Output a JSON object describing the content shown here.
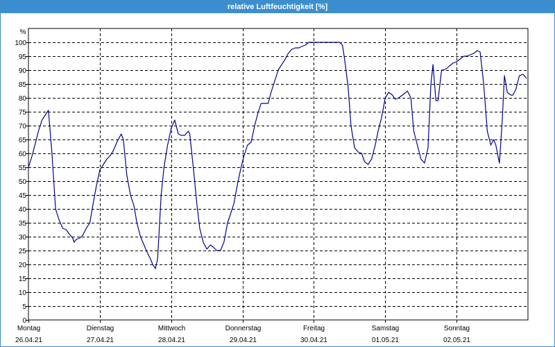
{
  "window": {
    "title": "relative Luftfeuchtigkeit [%]"
  },
  "chart_data": {
    "type": "line",
    "title": "relative Luftfeuchtigkeit [%]",
    "ylabel": "%",
    "ylim": [
      0,
      105
    ],
    "yticks": [
      0,
      5,
      10,
      15,
      20,
      25,
      30,
      35,
      40,
      45,
      50,
      55,
      60,
      65,
      70,
      75,
      80,
      85,
      90,
      95,
      100
    ],
    "xlim": [
      0,
      7
    ],
    "xticks": [
      {
        "x": 0,
        "day": "Montag",
        "date": "26.04.21"
      },
      {
        "x": 1,
        "day": "Dienstag",
        "date": "27.04.21"
      },
      {
        "x": 2,
        "day": "Mittwoch",
        "date": "28.04.21"
      },
      {
        "x": 3,
        "day": "Donnerstag",
        "date": "29.04.21"
      },
      {
        "x": 4,
        "day": "Freitag",
        "date": "30.04.21"
      },
      {
        "x": 5,
        "day": "Samstag",
        "date": "01.05.21"
      },
      {
        "x": 6,
        "day": "Sonntag",
        "date": "02.05.21"
      }
    ],
    "grid": true,
    "line_color": "#00008b",
    "series": [
      {
        "points": [
          [
            0.0,
            55
          ],
          [
            0.05,
            59
          ],
          [
            0.1,
            64
          ],
          [
            0.14,
            68
          ],
          [
            0.19,
            72
          ],
          [
            0.24,
            74
          ],
          [
            0.28,
            75.5
          ],
          [
            0.33,
            60
          ],
          [
            0.38,
            40
          ],
          [
            0.43,
            36
          ],
          [
            0.48,
            33
          ],
          [
            0.53,
            32.5
          ],
          [
            0.57,
            31
          ],
          [
            0.62,
            29.5
          ],
          [
            0.64,
            28
          ],
          [
            0.67,
            29
          ],
          [
            0.72,
            29.5
          ],
          [
            0.76,
            30.5
          ],
          [
            0.81,
            33
          ],
          [
            0.86,
            35
          ],
          [
            0.9,
            41
          ],
          [
            0.95,
            48
          ],
          [
            1.0,
            54
          ],
          [
            1.05,
            56
          ],
          [
            1.1,
            58
          ],
          [
            1.14,
            59
          ],
          [
            1.19,
            61
          ],
          [
            1.24,
            64
          ],
          [
            1.28,
            66
          ],
          [
            1.3,
            67
          ],
          [
            1.33,
            65
          ],
          [
            1.38,
            52
          ],
          [
            1.43,
            45
          ],
          [
            1.48,
            41
          ],
          [
            1.52,
            35
          ],
          [
            1.57,
            30
          ],
          [
            1.62,
            27
          ],
          [
            1.67,
            24
          ],
          [
            1.71,
            22
          ],
          [
            1.74,
            20
          ],
          [
            1.78,
            18.5
          ],
          [
            1.81,
            22
          ],
          [
            1.86,
            45
          ],
          [
            1.9,
            55
          ],
          [
            1.95,
            63
          ],
          [
            2.0,
            69
          ],
          [
            2.05,
            72
          ],
          [
            2.1,
            67
          ],
          [
            2.14,
            66.5
          ],
          [
            2.19,
            66.5
          ],
          [
            2.24,
            68
          ],
          [
            2.26,
            67
          ],
          [
            2.31,
            55
          ],
          [
            2.36,
            42
          ],
          [
            2.4,
            33
          ],
          [
            2.45,
            28
          ],
          [
            2.5,
            25.5
          ],
          [
            2.55,
            27
          ],
          [
            2.6,
            26
          ],
          [
            2.64,
            25
          ],
          [
            2.69,
            25
          ],
          [
            2.74,
            28
          ],
          [
            2.79,
            35
          ],
          [
            2.83,
            38
          ],
          [
            2.88,
            42
          ],
          [
            2.93,
            49
          ],
          [
            2.98,
            55
          ],
          [
            3.02,
            59
          ],
          [
            3.07,
            63
          ],
          [
            3.12,
            64
          ],
          [
            3.17,
            70
          ],
          [
            3.21,
            74
          ],
          [
            3.26,
            78
          ],
          [
            3.31,
            78
          ],
          [
            3.36,
            78
          ],
          [
            3.4,
            82
          ],
          [
            3.45,
            86
          ],
          [
            3.5,
            90
          ],
          [
            3.55,
            92
          ],
          [
            3.6,
            94
          ],
          [
            3.64,
            96
          ],
          [
            3.69,
            97.5
          ],
          [
            3.74,
            98
          ],
          [
            3.79,
            98
          ],
          [
            3.83,
            98.5
          ],
          [
            3.88,
            99
          ],
          [
            3.93,
            100
          ],
          [
            3.98,
            100
          ],
          [
            4.02,
            100
          ],
          [
            4.07,
            100
          ],
          [
            4.12,
            100
          ],
          [
            4.17,
            100
          ],
          [
            4.21,
            100
          ],
          [
            4.26,
            100
          ],
          [
            4.31,
            100
          ],
          [
            4.36,
            100
          ],
          [
            4.4,
            99
          ],
          [
            4.43,
            94
          ],
          [
            4.48,
            84
          ],
          [
            4.52,
            70
          ],
          [
            4.57,
            62
          ],
          [
            4.62,
            60.5
          ],
          [
            4.67,
            60
          ],
          [
            4.71,
            57
          ],
          [
            4.76,
            56
          ],
          [
            4.81,
            58
          ],
          [
            4.86,
            63
          ],
          [
            4.9,
            68
          ],
          [
            4.95,
            73
          ],
          [
            5.0,
            80
          ],
          [
            5.05,
            82
          ],
          [
            5.1,
            81
          ],
          [
            5.14,
            79.5
          ],
          [
            5.19,
            80
          ],
          [
            5.24,
            81
          ],
          [
            5.29,
            82
          ],
          [
            5.31,
            82.5
          ],
          [
            5.36,
            80
          ],
          [
            5.4,
            68
          ],
          [
            5.45,
            63
          ],
          [
            5.5,
            58
          ],
          [
            5.55,
            56.5
          ],
          [
            5.6,
            62
          ],
          [
            5.64,
            85
          ],
          [
            5.67,
            92
          ],
          [
            5.71,
            79
          ],
          [
            5.74,
            79
          ],
          [
            5.79,
            90
          ],
          [
            5.81,
            90
          ],
          [
            5.86,
            90.5
          ],
          [
            5.9,
            91.5
          ],
          [
            5.95,
            92.5
          ],
          [
            6.0,
            93
          ],
          [
            6.05,
            94
          ],
          [
            6.1,
            95
          ],
          [
            6.14,
            95
          ],
          [
            6.19,
            95.5
          ],
          [
            6.24,
            96
          ],
          [
            6.29,
            97
          ],
          [
            6.33,
            96.5
          ],
          [
            6.38,
            85
          ],
          [
            6.43,
            68
          ],
          [
            6.48,
            63
          ],
          [
            6.52,
            65
          ],
          [
            6.55,
            63
          ],
          [
            6.6,
            56.5
          ],
          [
            6.64,
            72
          ],
          [
            6.67,
            88
          ],
          [
            6.71,
            82
          ],
          [
            6.76,
            81
          ],
          [
            6.79,
            81
          ],
          [
            6.83,
            83
          ],
          [
            6.88,
            88
          ],
          [
            6.93,
            88.5
          ],
          [
            6.98,
            87
          ]
        ]
      }
    ]
  }
}
